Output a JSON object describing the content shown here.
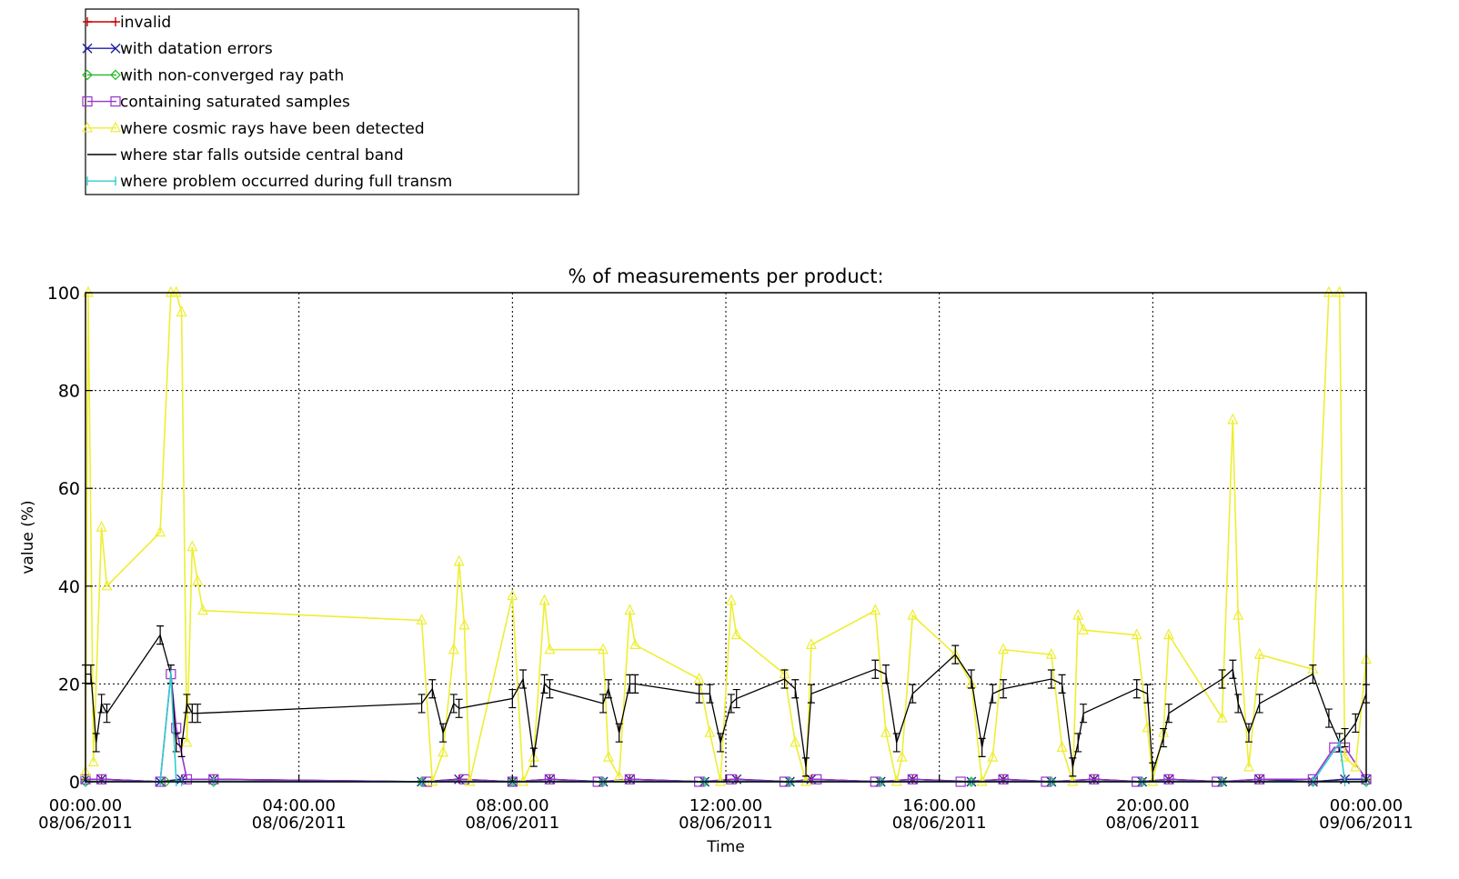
{
  "chart_data": {
    "type": "line",
    "title": "% of measurements per product:",
    "xlabel": "Time",
    "ylabel": "value (%)",
    "x_unit": "hours from 08/06/2011 00:00:00",
    "xlim": [
      0,
      24
    ],
    "ylim": [
      0,
      100
    ],
    "grid": true,
    "legend_position": "top-left, above plot",
    "x_ticks": [
      {
        "x": 0,
        "time": "00:00.00",
        "date": "08/06/2011"
      },
      {
        "x": 4,
        "time": "04:00.00",
        "date": "08/06/2011"
      },
      {
        "x": 8,
        "time": "08:00.00",
        "date": "08/06/2011"
      },
      {
        "x": 12,
        "time": "12:00.00",
        "date": "08/06/2011"
      },
      {
        "x": 16,
        "time": "16:00.00",
        "date": "08/06/2011"
      },
      {
        "x": 20,
        "time": "20:00.00",
        "date": "08/06/2011"
      },
      {
        "x": 24,
        "time": "00:00.00",
        "date": "09/06/2011"
      }
    ],
    "y_ticks": [
      "0",
      "20",
      "40",
      "60",
      "80",
      "100"
    ],
    "series": [
      {
        "name": "invalid",
        "color": "#cc0000",
        "marker": "plus",
        "x": [
          0,
          0.3,
          1.4,
          1.8,
          2.4,
          6.3,
          7.0,
          8.0,
          8.7,
          9.7,
          10.2,
          11.6,
          12.2,
          13.2,
          13.6,
          14.9,
          15.5,
          16.6,
          17.2,
          18.1,
          18.9,
          19.8,
          20.3,
          21.3,
          22.0,
          23.0,
          23.6,
          24.0
        ],
        "y": [
          0.5,
          0.5,
          0,
          0.5,
          0.5,
          0,
          0.5,
          0,
          0.5,
          0,
          0.5,
          0,
          0.5,
          0,
          0.5,
          0,
          0.5,
          0,
          0.5,
          0,
          0.5,
          0,
          0.5,
          0,
          0.5,
          0,
          0.5,
          0.5
        ]
      },
      {
        "name": "with datation errors",
        "color": "#1f1fa0",
        "marker": "x",
        "x": [
          0,
          0.3,
          1.4,
          1.8,
          2.4,
          6.3,
          7.0,
          8.0,
          8.7,
          9.7,
          10.2,
          11.6,
          12.2,
          13.2,
          13.6,
          14.9,
          15.5,
          16.6,
          17.2,
          18.1,
          18.9,
          19.8,
          20.3,
          21.3,
          22.0,
          23.0,
          23.6,
          24.0
        ],
        "y": [
          0.5,
          0.5,
          0,
          0.5,
          0.5,
          0,
          0.5,
          0,
          0.5,
          0,
          0.5,
          0,
          0.5,
          0,
          0.5,
          0,
          0.5,
          0,
          0.5,
          0,
          0.5,
          0,
          0.5,
          0,
          0.5,
          0,
          0.5,
          0.5
        ]
      },
      {
        "name": "with non-converged ray path",
        "color": "#22bb22",
        "marker": "diamond",
        "x": [
          0,
          1.5,
          2.4,
          6.3,
          8.0,
          9.7,
          11.6,
          13.2,
          14.9,
          16.6,
          18.1,
          19.8,
          21.3,
          23.0,
          24.0
        ],
        "y": [
          0,
          0,
          0,
          0,
          0,
          0,
          0,
          0,
          0,
          0,
          0,
          0,
          0,
          0,
          0
        ]
      },
      {
        "name": "containing saturated samples",
        "color": "#9933cc",
        "marker": "square",
        "x": [
          0,
          0.3,
          1.4,
          1.6,
          1.7,
          1.9,
          2.4,
          6.4,
          7.1,
          8.0,
          8.7,
          9.6,
          10.2,
          11.5,
          12.1,
          13.1,
          13.7,
          14.8,
          15.5,
          16.4,
          17.2,
          18.0,
          18.9,
          19.7,
          20.3,
          21.2,
          22.0,
          23.0,
          23.4,
          23.6,
          24.0
        ],
        "y": [
          0.5,
          0.5,
          0,
          22,
          11,
          0.5,
          0.5,
          0,
          0.5,
          0,
          0.5,
          0,
          0.5,
          0,
          0.5,
          0,
          0.5,
          0,
          0.5,
          0,
          0.5,
          0,
          0.5,
          0,
          0.5,
          0,
          0.5,
          0.5,
          7,
          7,
          0.5
        ]
      },
      {
        "name": "where cosmic rays have been detected",
        "color": "#eeee33",
        "marker": "triangle",
        "x": [
          0,
          0.05,
          0.15,
          0.3,
          0.4,
          1.4,
          1.6,
          1.7,
          1.8,
          1.9,
          2.0,
          2.1,
          2.2,
          6.3,
          6.5,
          6.7,
          6.9,
          7.0,
          7.1,
          7.2,
          8.0,
          8.2,
          8.4,
          8.6,
          8.7,
          9.7,
          9.8,
          10.0,
          10.2,
          10.3,
          11.5,
          11.7,
          11.9,
          12.1,
          12.2,
          13.1,
          13.3,
          13.5,
          13.6,
          14.8,
          15.0,
          15.2,
          15.3,
          15.5,
          16.3,
          16.6,
          16.8,
          17.0,
          17.2,
          18.1,
          18.3,
          18.5,
          18.6,
          18.7,
          19.7,
          19.9,
          20.0,
          20.2,
          20.3,
          21.3,
          21.5,
          21.6,
          21.8,
          22.0,
          23.0,
          23.3,
          23.5,
          23.6,
          23.8,
          24.0
        ],
        "y": [
          2,
          100,
          4,
          52,
          40,
          51,
          100,
          100,
          96,
          8,
          48,
          41,
          35,
          33,
          0,
          6,
          27,
          45,
          32,
          0,
          38,
          0,
          5,
          37,
          27,
          27,
          5,
          1,
          35,
          28,
          21,
          10,
          0,
          37,
          30,
          22,
          8,
          0,
          28,
          35,
          10,
          0,
          5,
          34,
          26,
          20,
          0,
          5,
          27,
          26,
          7,
          0,
          34,
          31,
          30,
          11,
          0,
          10,
          30,
          13,
          74,
          34,
          3,
          26,
          23,
          100,
          100,
          5,
          3,
          25
        ]
      },
      {
        "name": "where star falls outside central band",
        "color": "#000000",
        "marker": "errorbar",
        "x": [
          0,
          0.1,
          0.2,
          0.3,
          0.4,
          1.4,
          1.6,
          1.7,
          1.8,
          1.9,
          2.0,
          2.1,
          6.3,
          6.5,
          6.7,
          6.9,
          7.0,
          8.0,
          8.2,
          8.4,
          8.6,
          8.7,
          9.7,
          9.8,
          10.0,
          10.2,
          10.3,
          11.5,
          11.7,
          11.9,
          12.1,
          12.2,
          13.1,
          13.3,
          13.5,
          13.6,
          14.8,
          15.0,
          15.2,
          15.5,
          16.3,
          16.6,
          16.8,
          17.0,
          17.2,
          18.1,
          18.3,
          18.5,
          18.6,
          18.7,
          19.7,
          19.9,
          20.0,
          20.2,
          20.3,
          21.3,
          21.5,
          21.6,
          21.8,
          22.0,
          23.0,
          23.3,
          23.5,
          23.6,
          23.8,
          24.0
        ],
        "y": [
          22,
          22,
          8,
          16,
          14,
          30,
          22,
          8,
          7,
          16,
          14,
          14,
          16,
          19,
          10,
          16,
          15,
          17,
          21,
          5,
          20,
          19,
          16,
          19,
          10,
          20,
          20,
          18,
          18,
          8,
          16,
          17,
          21,
          19,
          3,
          18,
          23,
          22,
          8,
          18,
          26,
          21,
          7,
          18,
          19,
          21,
          20,
          3,
          8,
          14,
          19,
          18,
          2,
          9,
          14,
          21,
          23,
          16,
          10,
          16,
          22,
          13,
          8,
          9,
          12,
          18
        ]
      },
      {
        "name": "where problem occurred during full transm",
        "color": "#33cccc",
        "marker": "bar",
        "x": [
          0,
          1.4,
          1.6,
          1.7,
          1.8,
          2.4,
          6.3,
          8.0,
          9.7,
          11.6,
          13.2,
          14.9,
          16.6,
          18.1,
          19.8,
          21.3,
          23.0,
          23.5,
          23.6,
          24.0
        ],
        "y": [
          0,
          0,
          22,
          0,
          0,
          0,
          0,
          0,
          0,
          0,
          0,
          0,
          0,
          0,
          0,
          0,
          0,
          8,
          0,
          0
        ]
      }
    ]
  }
}
